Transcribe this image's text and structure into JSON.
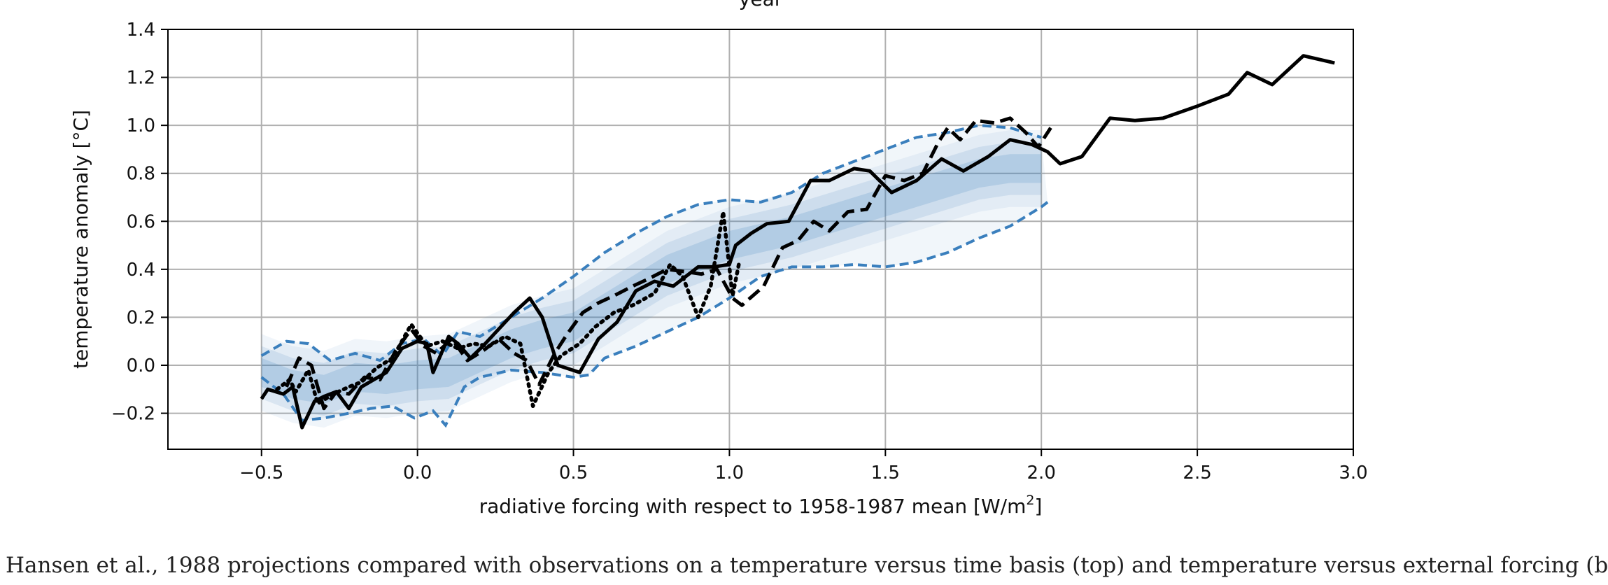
{
  "chart_data": {
    "type": "line",
    "top_title_partial": "year",
    "xlabel": "radiative forcing with respect to 1958-1987 mean [W/m",
    "xlabel_sup": "2",
    "xlabel_end": "]",
    "ylabel": "temperature anomaly [°C]",
    "xlim": [
      -0.8,
      3.0
    ],
    "ylim": [
      -0.35,
      1.4
    ],
    "x_ticks": [
      -0.5,
      0.0,
      0.5,
      1.0,
      1.5,
      2.0,
      2.5,
      3.0
    ],
    "x_tick_labels": [
      "−0.5",
      "0.0",
      "0.5",
      "1.0",
      "1.5",
      "2.0",
      "2.5",
      "3.0"
    ],
    "y_ticks": [
      -0.2,
      0.0,
      0.2,
      0.4,
      0.6,
      0.8,
      1.0,
      1.2,
      1.4
    ],
    "y_tick_labels": [
      "−0.2",
      "0.0",
      "0.2",
      "0.4",
      "0.6",
      "0.8",
      "1.0",
      "1.2",
      "1.4"
    ],
    "grid": true,
    "colors": {
      "ensemble": "#3a7fbd",
      "observations": "#000000",
      "grid": "#b0b0b0"
    },
    "ensemble_band": {
      "upper": [
        [
          -0.5,
          0.04
        ],
        [
          -0.42,
          0.1
        ],
        [
          -0.35,
          0.09
        ],
        [
          -0.28,
          0.02
        ],
        [
          -0.2,
          0.05
        ],
        [
          -0.12,
          0.02
        ],
        [
          -0.05,
          0.09
        ],
        [
          0.02,
          0.11
        ],
        [
          0.08,
          0.04
        ],
        [
          0.13,
          0.14
        ],
        [
          0.2,
          0.12
        ],
        [
          0.3,
          0.2
        ],
        [
          0.4,
          0.28
        ],
        [
          0.5,
          0.37
        ],
        [
          0.6,
          0.47
        ],
        [
          0.7,
          0.55
        ],
        [
          0.8,
          0.62
        ],
        [
          0.9,
          0.67
        ],
        [
          1.0,
          0.69
        ],
        [
          1.1,
          0.68
        ],
        [
          1.2,
          0.72
        ],
        [
          1.3,
          0.8
        ],
        [
          1.4,
          0.85
        ],
        [
          1.5,
          0.9
        ],
        [
          1.6,
          0.95
        ],
        [
          1.7,
          0.97
        ],
        [
          1.8,
          1.0
        ],
        [
          1.9,
          0.99
        ],
        [
          2.0,
          0.95
        ]
      ],
      "lower": [
        [
          -0.5,
          -0.05
        ],
        [
          -0.43,
          -0.12
        ],
        [
          -0.37,
          -0.23
        ],
        [
          -0.3,
          -0.22
        ],
        [
          -0.22,
          -0.2
        ],
        [
          -0.15,
          -0.18
        ],
        [
          -0.08,
          -0.17
        ],
        [
          -0.01,
          -0.22
        ],
        [
          0.05,
          -0.19
        ],
        [
          0.09,
          -0.25
        ],
        [
          0.15,
          -0.09
        ],
        [
          0.2,
          -0.05
        ],
        [
          0.3,
          -0.02
        ],
        [
          0.4,
          -0.03
        ],
        [
          0.5,
          -0.05
        ],
        [
          0.55,
          -0.04
        ],
        [
          0.6,
          0.03
        ],
        [
          0.7,
          0.08
        ],
        [
          0.8,
          0.14
        ],
        [
          0.9,
          0.2
        ],
        [
          1.0,
          0.28
        ],
        [
          1.1,
          0.37
        ],
        [
          1.2,
          0.41
        ],
        [
          1.3,
          0.41
        ],
        [
          1.4,
          0.42
        ],
        [
          1.5,
          0.41
        ],
        [
          1.6,
          0.43
        ],
        [
          1.7,
          0.47
        ],
        [
          1.8,
          0.53
        ],
        [
          1.9,
          0.58
        ],
        [
          2.0,
          0.66
        ],
        [
          2.02,
          0.68
        ]
      ]
    },
    "ensemble_center": [
      [
        -0.5,
        -0.03
      ],
      [
        -0.4,
        -0.08
      ],
      [
        -0.3,
        -0.1
      ],
      [
        -0.2,
        -0.05
      ],
      [
        -0.1,
        -0.06
      ],
      [
        0.0,
        -0.04
      ],
      [
        0.1,
        -0.03
      ],
      [
        0.2,
        0.03
      ],
      [
        0.3,
        0.09
      ],
      [
        0.4,
        0.13
      ],
      [
        0.5,
        0.16
      ],
      [
        0.6,
        0.24
      ],
      [
        0.7,
        0.32
      ],
      [
        0.8,
        0.4
      ],
      [
        0.9,
        0.45
      ],
      [
        1.0,
        0.5
      ],
      [
        1.1,
        0.53
      ],
      [
        1.2,
        0.56
      ],
      [
        1.3,
        0.6
      ],
      [
        1.4,
        0.64
      ],
      [
        1.5,
        0.68
      ],
      [
        1.6,
        0.72
      ],
      [
        1.7,
        0.76
      ],
      [
        1.8,
        0.8
      ],
      [
        1.9,
        0.82
      ],
      [
        2.0,
        0.82
      ]
    ],
    "series": [
      {
        "name": "solid",
        "style": "solid",
        "points": [
          [
            -0.5,
            -0.14
          ],
          [
            -0.48,
            -0.1
          ],
          [
            -0.43,
            -0.12
          ],
          [
            -0.4,
            -0.09
          ],
          [
            -0.37,
            -0.26
          ],
          [
            -0.33,
            -0.15
          ],
          [
            -0.3,
            -0.13
          ],
          [
            -0.26,
            -0.11
          ],
          [
            -0.22,
            -0.18
          ],
          [
            -0.18,
            -0.09
          ],
          [
            -0.14,
            -0.06
          ],
          [
            -0.1,
            -0.03
          ],
          [
            -0.05,
            0.07
          ],
          [
            0.0,
            0.1
          ],
          [
            0.03,
            0.09
          ],
          [
            0.05,
            -0.03
          ],
          [
            0.1,
            0.12
          ],
          [
            0.13,
            0.09
          ],
          [
            0.17,
            0.03
          ],
          [
            0.21,
            0.08
          ],
          [
            0.26,
            0.15
          ],
          [
            0.31,
            0.22
          ],
          [
            0.36,
            0.28
          ],
          [
            0.4,
            0.2
          ],
          [
            0.45,
            0.0
          ],
          [
            0.52,
            -0.03
          ],
          [
            0.58,
            0.11
          ],
          [
            0.64,
            0.18
          ],
          [
            0.7,
            0.31
          ],
          [
            0.76,
            0.35
          ],
          [
            0.82,
            0.33
          ],
          [
            0.86,
            0.37
          ],
          [
            0.9,
            0.41
          ],
          [
            0.95,
            0.41
          ],
          [
            1.0,
            0.42
          ],
          [
            1.02,
            0.5
          ],
          [
            1.07,
            0.55
          ],
          [
            1.12,
            0.59
          ],
          [
            1.19,
            0.6
          ],
          [
            1.26,
            0.77
          ],
          [
            1.32,
            0.77
          ],
          [
            1.4,
            0.82
          ],
          [
            1.45,
            0.81
          ],
          [
            1.52,
            0.72
          ],
          [
            1.6,
            0.77
          ],
          [
            1.68,
            0.86
          ],
          [
            1.75,
            0.81
          ],
          [
            1.83,
            0.87
          ],
          [
            1.9,
            0.94
          ],
          [
            1.97,
            0.92
          ],
          [
            2.02,
            0.89
          ],
          [
            2.06,
            0.84
          ],
          [
            2.13,
            0.87
          ],
          [
            2.22,
            1.03
          ],
          [
            2.3,
            1.02
          ],
          [
            2.39,
            1.03
          ],
          [
            2.5,
            1.08
          ],
          [
            2.6,
            1.13
          ],
          [
            2.66,
            1.22
          ],
          [
            2.74,
            1.17
          ],
          [
            2.84,
            1.29
          ],
          [
            2.94,
            1.26
          ]
        ]
      },
      {
        "name": "dashed",
        "style": "dashed",
        "points": [
          [
            -0.42,
            -0.09
          ],
          [
            -0.38,
            0.03
          ],
          [
            -0.34,
            0.0
          ],
          [
            -0.3,
            -0.18
          ],
          [
            -0.26,
            -0.11
          ],
          [
            -0.22,
            -0.12
          ],
          [
            -0.17,
            -0.05
          ],
          [
            -0.12,
            -0.06
          ],
          [
            -0.07,
            0.06
          ],
          [
            -0.02,
            0.15
          ],
          [
            0.02,
            0.08
          ],
          [
            0.06,
            0.05
          ],
          [
            0.11,
            0.11
          ],
          [
            0.16,
            0.02
          ],
          [
            0.21,
            0.06
          ],
          [
            0.26,
            0.11
          ],
          [
            0.31,
            0.05
          ],
          [
            0.35,
            0.02
          ],
          [
            0.39,
            -0.08
          ],
          [
            0.44,
            0.05
          ],
          [
            0.48,
            0.13
          ],
          [
            0.53,
            0.22
          ],
          [
            0.58,
            0.26
          ],
          [
            0.63,
            0.29
          ],
          [
            0.69,
            0.33
          ],
          [
            0.74,
            0.36
          ],
          [
            0.8,
            0.4
          ],
          [
            0.86,
            0.39
          ],
          [
            0.91,
            0.38
          ],
          [
            0.96,
            0.4
          ],
          [
            1.01,
            0.28
          ],
          [
            1.04,
            0.25
          ],
          [
            1.11,
            0.33
          ],
          [
            1.17,
            0.49
          ],
          [
            1.22,
            0.52
          ],
          [
            1.27,
            0.6
          ],
          [
            1.32,
            0.56
          ],
          [
            1.38,
            0.64
          ],
          [
            1.44,
            0.65
          ],
          [
            1.5,
            0.79
          ],
          [
            1.56,
            0.77
          ],
          [
            1.62,
            0.8
          ],
          [
            1.67,
            0.93
          ],
          [
            1.7,
            0.99
          ],
          [
            1.74,
            0.94
          ],
          [
            1.79,
            1.02
          ],
          [
            1.85,
            1.01
          ],
          [
            1.9,
            1.03
          ],
          [
            1.95,
            0.97
          ],
          [
            1.99,
            0.91
          ],
          [
            2.03,
            0.99
          ]
        ]
      },
      {
        "name": "dotted",
        "style": "dotted",
        "points": [
          [
            -0.45,
            -0.1
          ],
          [
            -0.41,
            -0.06
          ],
          [
            -0.39,
            -0.11
          ],
          [
            -0.35,
            -0.02
          ],
          [
            -0.32,
            -0.16
          ],
          [
            -0.27,
            -0.12
          ],
          [
            -0.22,
            -0.09
          ],
          [
            -0.18,
            -0.07
          ],
          [
            -0.13,
            -0.01
          ],
          [
            -0.08,
            0.03
          ],
          [
            -0.02,
            0.17
          ],
          [
            0.03,
            0.08
          ],
          [
            0.08,
            0.1
          ],
          [
            0.13,
            0.07
          ],
          [
            0.18,
            0.09
          ],
          [
            0.23,
            0.08
          ],
          [
            0.28,
            0.12
          ],
          [
            0.33,
            0.09
          ],
          [
            0.37,
            -0.17
          ],
          [
            0.42,
            -0.03
          ],
          [
            0.46,
            0.04
          ],
          [
            0.52,
            0.09
          ],
          [
            0.57,
            0.16
          ],
          [
            0.63,
            0.22
          ],
          [
            0.69,
            0.25
          ],
          [
            0.76,
            0.3
          ],
          [
            0.81,
            0.42
          ],
          [
            0.85,
            0.37
          ],
          [
            0.9,
            0.2
          ],
          [
            0.94,
            0.33
          ],
          [
            0.98,
            0.64
          ],
          [
            1.01,
            0.29
          ],
          [
            1.03,
            0.42
          ]
        ]
      }
    ]
  },
  "caption": "Hansen et al., 1988 projections compared with observations on a temperature versus time basis (top) and temperature versus external forcing (b"
}
